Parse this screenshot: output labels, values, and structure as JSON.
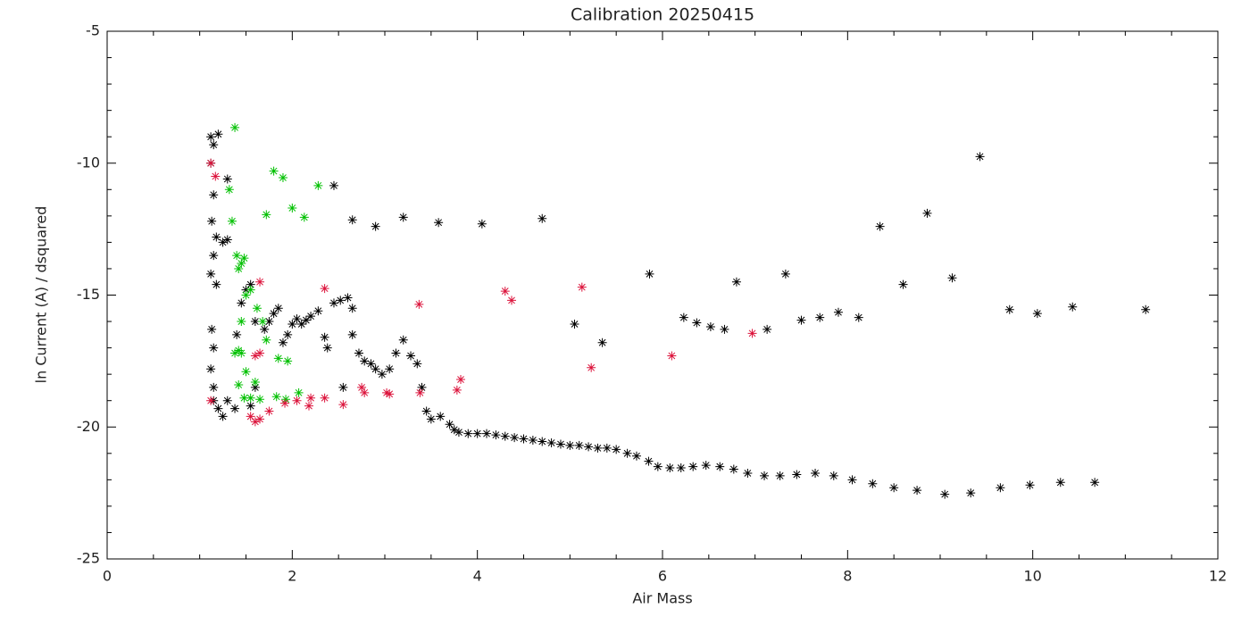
{
  "chart_data": {
    "type": "scatter",
    "title": "Calibration 20250415",
    "x_label": "Air Mass",
    "y_label": "ln Current (A) / dsquared",
    "xlim": [
      0,
      12
    ],
    "ylim": [
      -25,
      -5
    ],
    "xticks": [
      0,
      2,
      4,
      6,
      8,
      10,
      12
    ],
    "yticks": [
      -25,
      -20,
      -15,
      -10,
      -5
    ],
    "marker": "asterisk",
    "series": [
      {
        "color": "#000000",
        "x": [
          3.45,
          3.5,
          3.6,
          3.7,
          3.75,
          3.8,
          3.9,
          4.0,
          4.1,
          4.2,
          4.3,
          4.4,
          4.5,
          4.6,
          4.7,
          4.8,
          4.9,
          5.0,
          5.1,
          5.2,
          5.3,
          5.4,
          5.5,
          5.62,
          5.72,
          5.85,
          5.95,
          6.08,
          6.2,
          6.33,
          6.47,
          6.62,
          6.77,
          6.92,
          7.1,
          7.27,
          7.45,
          7.65,
          7.85,
          8.05,
          8.27,
          8.5,
          8.75,
          9.05,
          9.33,
          9.65,
          9.97,
          10.3,
          10.67,
          5.05,
          5.35,
          5.86,
          6.23,
          6.37,
          6.52,
          6.67,
          6.8,
          7.13,
          7.33,
          7.5,
          7.7,
          7.9,
          8.12,
          8.35,
          8.6,
          8.86,
          9.13,
          9.43,
          9.75,
          10.05,
          10.43,
          11.22,
          2.45,
          2.65,
          2.9,
          3.2,
          3.58,
          4.05,
          4.7,
          1.12,
          1.15,
          1.2,
          1.12,
          1.15,
          1.13,
          1.18,
          1.15,
          1.12,
          1.18,
          1.25,
          1.3,
          1.3,
          1.13,
          1.15,
          1.12,
          1.15,
          1.15,
          1.2,
          1.25,
          1.3,
          1.38,
          1.4,
          1.45,
          1.5,
          1.55,
          1.6,
          1.7,
          1.75,
          1.8,
          1.85,
          1.9,
          1.95,
          2.0,
          2.05,
          2.1,
          2.15,
          2.2,
          2.28,
          2.35,
          2.38,
          2.45,
          2.52,
          2.6,
          2.65,
          2.55,
          2.65,
          2.72,
          2.78,
          2.85,
          2.9,
          2.97,
          3.05,
          3.12,
          3.2,
          3.28,
          3.35,
          3.4,
          1.6,
          1.55
        ],
        "y": [
          -19.4,
          -19.7,
          -19.6,
          -19.9,
          -20.1,
          -20.2,
          -20.25,
          -20.25,
          -20.25,
          -20.3,
          -20.35,
          -20.4,
          -20.45,
          -20.5,
          -20.55,
          -20.6,
          -20.65,
          -20.7,
          -20.7,
          -20.75,
          -20.8,
          -20.8,
          -20.85,
          -21.0,
          -21.1,
          -21.3,
          -21.5,
          -21.55,
          -21.55,
          -21.5,
          -21.45,
          -21.5,
          -21.6,
          -21.75,
          -21.85,
          -21.85,
          -21.8,
          -21.75,
          -21.85,
          -22.0,
          -22.15,
          -22.3,
          -22.4,
          -22.55,
          -22.5,
          -22.3,
          -22.2,
          -22.1,
          -22.1,
          -16.1,
          -16.8,
          -14.2,
          -15.85,
          -16.05,
          -16.2,
          -16.3,
          -14.5,
          -16.3,
          -14.2,
          -15.95,
          -15.85,
          -15.65,
          -15.85,
          -12.4,
          -14.6,
          -11.9,
          -14.35,
          -9.75,
          -15.55,
          -15.7,
          -15.45,
          -15.55,
          -10.85,
          -12.15,
          -12.4,
          -12.05,
          -12.25,
          -12.3,
          -12.1,
          -9.0,
          -9.3,
          -8.9,
          -10.0,
          -11.2,
          -12.2,
          -12.8,
          -13.5,
          -14.2,
          -14.6,
          -13.0,
          -10.6,
          -12.9,
          -16.3,
          -17.0,
          -17.8,
          -18.5,
          -19.0,
          -19.3,
          -19.6,
          -19.0,
          -19.3,
          -16.5,
          -15.3,
          -14.8,
          -14.6,
          -16.0,
          -16.3,
          -16.0,
          -15.7,
          -15.5,
          -16.8,
          -16.5,
          -16.1,
          -15.9,
          -16.1,
          -15.95,
          -15.8,
          -15.6,
          -16.6,
          -17.0,
          -15.3,
          -15.2,
          -15.1,
          -15.5,
          -18.5,
          -16.5,
          -17.2,
          -17.5,
          -17.6,
          -17.8,
          -18.0,
          -17.8,
          -17.2,
          -16.7,
          -17.3,
          -17.6,
          -18.5,
          -18.5,
          -19.2
        ]
      },
      {
        "color": "#00c000",
        "x": [
          1.38,
          1.32,
          1.35,
          1.4,
          1.45,
          1.42,
          1.48,
          1.8,
          1.9,
          2.28,
          1.72,
          2.0,
          2.13,
          1.5,
          1.55,
          1.62,
          1.45,
          1.42,
          1.45,
          1.38,
          1.72,
          1.85,
          1.95,
          1.5,
          1.42,
          1.6,
          1.48,
          1.55,
          1.65,
          1.83,
          1.93,
          2.07,
          1.68
        ],
        "y": [
          -8.65,
          -11.0,
          -12.2,
          -13.5,
          -13.8,
          -14.0,
          -13.6,
          -10.3,
          -10.55,
          -10.85,
          -11.95,
          -11.7,
          -12.05,
          -15.0,
          -14.8,
          -15.5,
          -16.0,
          -17.1,
          -17.2,
          -17.2,
          -16.7,
          -17.4,
          -17.5,
          -17.9,
          -18.4,
          -18.3,
          -18.9,
          -18.9,
          -18.95,
          -18.85,
          -18.95,
          -18.7,
          -16.0
        ]
      },
      {
        "color": "#dc143c",
        "x": [
          1.12,
          1.17,
          1.12,
          1.55,
          1.6,
          1.65,
          1.75,
          1.92,
          2.05,
          2.18,
          2.2,
          2.35,
          2.55,
          2.75,
          2.78,
          3.02,
          3.05,
          3.38,
          3.78,
          3.82,
          1.65,
          1.65,
          1.6,
          2.35,
          3.37,
          4.3,
          4.37,
          5.13,
          5.23,
          6.1,
          6.97
        ],
        "y": [
          -10.0,
          -10.5,
          -19.0,
          -19.6,
          -19.8,
          -19.7,
          -19.4,
          -19.1,
          -19.0,
          -19.2,
          -18.9,
          -18.9,
          -19.15,
          -18.5,
          -18.7,
          -18.7,
          -18.75,
          -18.7,
          -18.6,
          -18.2,
          -14.5,
          -17.2,
          -17.3,
          -14.75,
          -15.35,
          -14.85,
          -15.2,
          -14.7,
          -17.75,
          -17.3,
          -16.45
        ]
      }
    ]
  }
}
